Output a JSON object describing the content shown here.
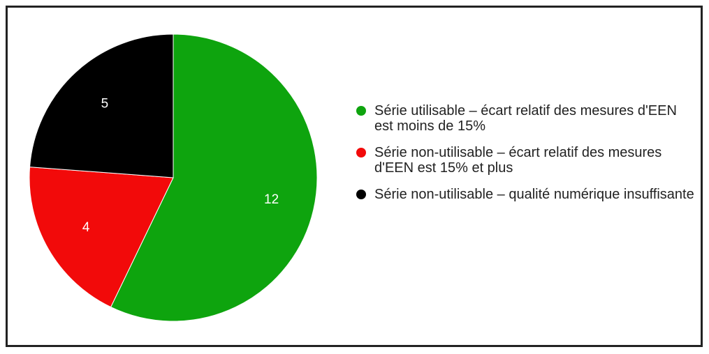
{
  "chart_data": {
    "type": "pie",
    "categories": [
      "Série utilisable – écart relatif des mesures d'EEN est moins de 15%",
      "Série non-utilisable – écart relatif des mesures d'EEN est 15% et plus",
      "Série non-utilisable – qualité numérique insuffisante"
    ],
    "values": [
      12,
      4,
      5
    ],
    "colors": [
      "#0ea40e",
      "#f20a0a",
      "#000000"
    ]
  }
}
